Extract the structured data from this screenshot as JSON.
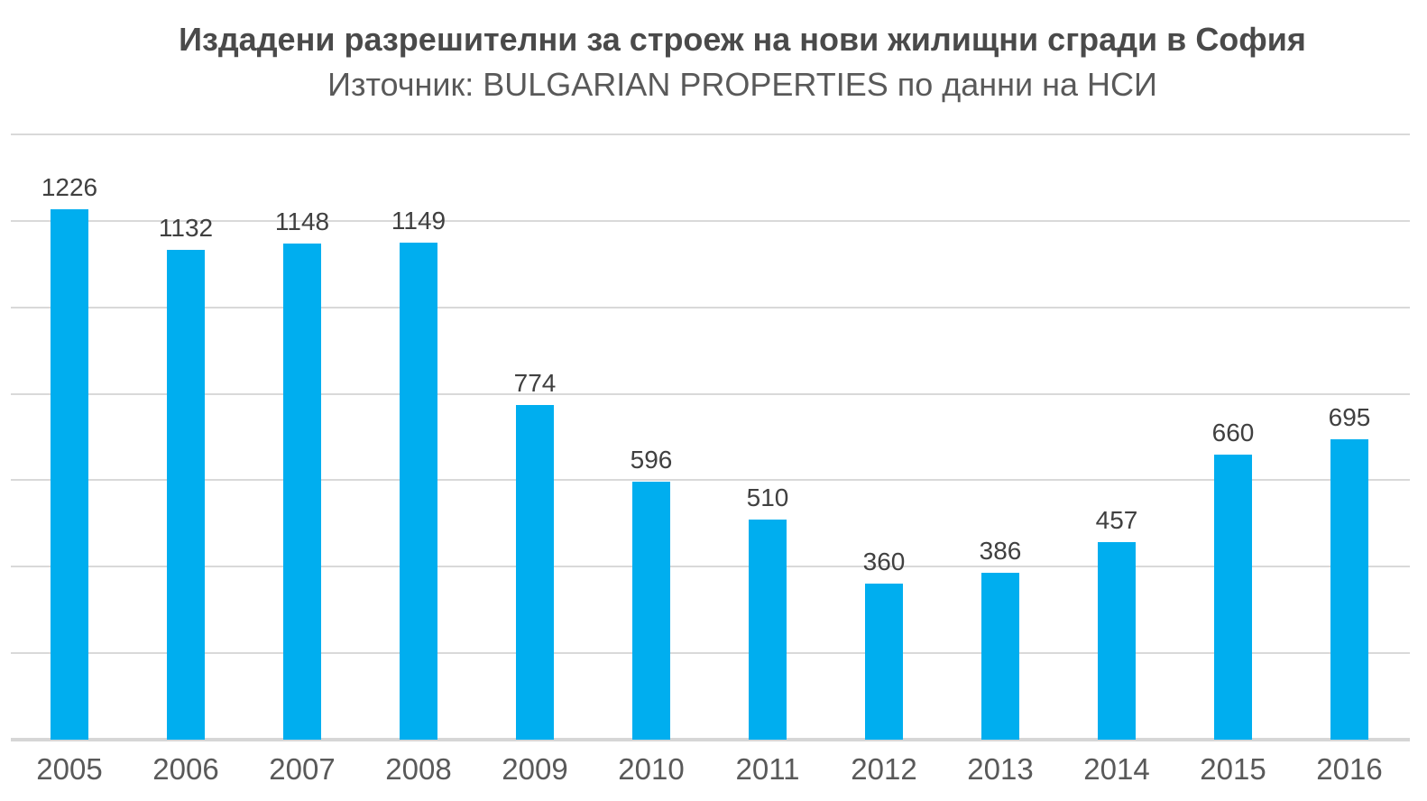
{
  "chart_data": {
    "type": "bar",
    "title": "Издадени разрешителни за строеж на нови жилищни сгради в София",
    "subtitle": "Източник: BULGARIAN PROPERTIES по данни на НСИ",
    "categories": [
      "2005",
      "2006",
      "2007",
      "2008",
      "2009",
      "2010",
      "2011",
      "2012",
      "2013",
      "2014",
      "2015",
      "2016"
    ],
    "values": [
      1226,
      1132,
      1148,
      1149,
      774,
      596,
      510,
      360,
      386,
      457,
      660,
      695
    ],
    "xlabel": "",
    "ylabel": "",
    "ylim": [
      0,
      1400
    ],
    "gridline_step": 200,
    "grid": true,
    "legend_position": "none",
    "y_axis_labels_visible": false,
    "data_labels_visible": true,
    "colors": {
      "bar": "#00AEEF",
      "gridline": "#D9D9D9",
      "axis_line": "#D6D6D6",
      "title": "#4A4A4A",
      "subtitle": "#595959",
      "value_label": "#404040",
      "category_label": "#595959"
    }
  }
}
